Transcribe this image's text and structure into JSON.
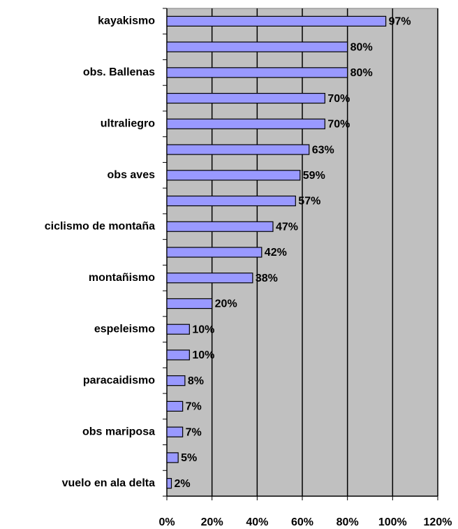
{
  "chart_data": {
    "type": "bar",
    "orientation": "horizontal",
    "categories": [
      "kayakismo",
      null,
      "obs. Ballenas",
      null,
      "ultraliegro",
      null,
      "obs aves",
      null,
      "ciclismo de montaña",
      null,
      "montañismo",
      null,
      "espeleismo",
      null,
      "paracaidismo",
      null,
      "obs mariposa",
      null,
      "vuelo en ala delta"
    ],
    "values": [
      97,
      80,
      80,
      70,
      70,
      63,
      59,
      57,
      47,
      42,
      38,
      20,
      10,
      10,
      8,
      7,
      7,
      5,
      2
    ],
    "value_labels": [
      "97%",
      "80%",
      "80%",
      "70%",
      "70%",
      "63%",
      "59%",
      "57%",
      "47%",
      "42%",
      "38%",
      "20%",
      "10%",
      "10%",
      "8%",
      "7%",
      "7%",
      "5%",
      "2%"
    ],
    "color": "#9999ff",
    "xlim": [
      0,
      120
    ],
    "xticks": [
      {
        "value": 0,
        "label": "0%"
      },
      {
        "value": 20,
        "label": "20%"
      },
      {
        "value": 40,
        "label": "40%"
      },
      {
        "value": 60,
        "label": "60%"
      },
      {
        "value": 80,
        "label": "80%"
      },
      {
        "value": 100,
        "label": "100%"
      },
      {
        "value": 120,
        "label": "120%"
      }
    ],
    "grid": true
  }
}
